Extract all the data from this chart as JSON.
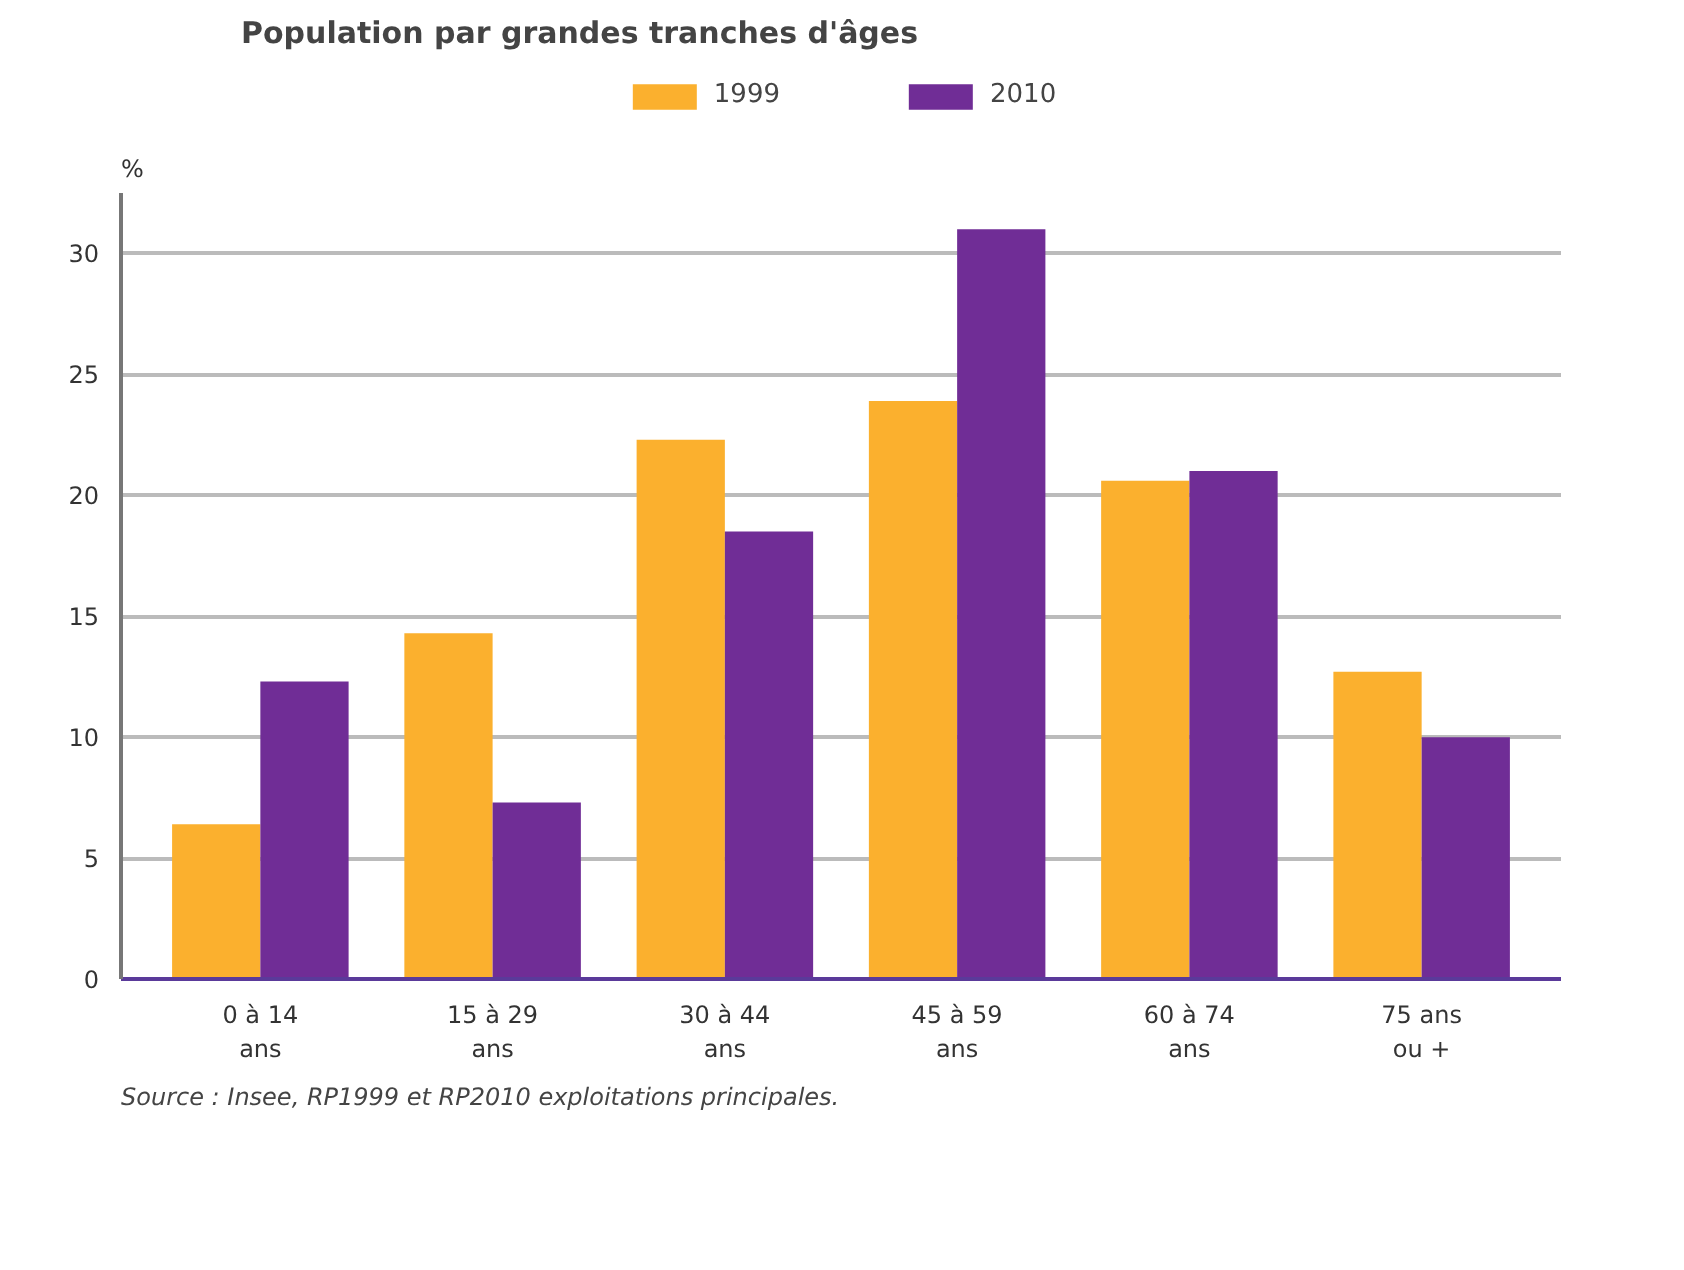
{
  "chart_data": {
    "type": "bar",
    "title": "Population par grandes tranches d'âges",
    "ylabel": "%",
    "categories": [
      "0 à 14 ans",
      "15 à 29 ans",
      "30 à 44 ans",
      "45 à 59 ans",
      "60 à 74 ans",
      "75 ans ou +"
    ],
    "series": [
      {
        "name": "1999",
        "color": "#fbb02e",
        "values": [
          6.4,
          14.3,
          22.3,
          23.9,
          20.6,
          12.7
        ]
      },
      {
        "name": "2010",
        "color": "#702d96",
        "values": [
          12.3,
          7.3,
          18.5,
          31.0,
          21.0,
          10.0
        ]
      }
    ],
    "ylim": [
      0,
      32.5
    ],
    "yticks": [
      0,
      5,
      10,
      15,
      20,
      25,
      30
    ],
    "grid": "y",
    "legend": "top",
    "annotations": [
      "Source : Insee, RP1999 et RP2010 exploitations principales."
    ]
  }
}
